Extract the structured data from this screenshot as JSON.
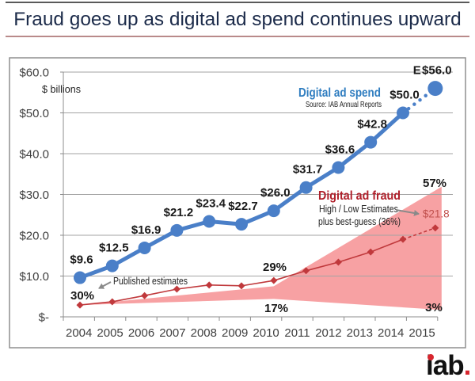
{
  "title": "Fraud goes up as digital ad spend continues upward",
  "logo": {
    "text": "iab",
    "period": "."
  },
  "chart_data": {
    "type": "line",
    "title": "Fraud goes up as digital ad spend continues upward",
    "xlabel": "",
    "ylabel": "$ billions",
    "x": [
      "2004",
      "2005",
      "2006",
      "2007",
      "2008",
      "2009",
      "2010",
      "2011",
      "2012",
      "2013",
      "2014",
      "2015"
    ],
    "ylim": [
      0,
      60
    ],
    "yticks": [
      0,
      10,
      20,
      30,
      40,
      50,
      60
    ],
    "ytick_labels": [
      "$-",
      "$10.0",
      "$20.0",
      "$30.0",
      "$40.0",
      "$50.0",
      "$60.0"
    ],
    "grid": true,
    "legend": "inline labels",
    "series": [
      {
        "name": "Digital ad spend",
        "source": "Source: IAB Annual Reports",
        "values": [
          9.6,
          12.5,
          16.9,
          21.2,
          23.4,
          22.7,
          26.0,
          31.7,
          36.6,
          42.8,
          50.0,
          56.0
        ],
        "labels": [
          "$9.6",
          "$12.5",
          "$16.9",
          "$21.2",
          "$23.4",
          "$22.7",
          "$26.0",
          "$31.7",
          "$36.6",
          "$42.8",
          "$50.0",
          "$56.0"
        ],
        "estimated_from_index": 11,
        "estimate_marker": "E",
        "color": "#4a7fc8"
      },
      {
        "name": "Digital ad fraud",
        "description": [
          "High / Low Estimates",
          "plus best-guess (36%)"
        ],
        "values": [
          2.9,
          3.7,
          5.2,
          6.8,
          7.8,
          7.6,
          8.9,
          11.3,
          13.4,
          15.9,
          19.0,
          21.8
        ],
        "end_label": "$21.8",
        "estimated_from_index": 11,
        "color": "#c0393c"
      }
    ],
    "fraud_range": {
      "x": [
        "2004",
        "2010",
        "2015"
      ],
      "high": [
        2.9,
        7.5,
        31.9
      ],
      "low": [
        2.9,
        4.4,
        1.7
      ],
      "high_pct_labels": [
        "30%",
        "29%",
        "57%"
      ],
      "low_pct_labels": [
        "",
        "17%",
        "3%"
      ],
      "color": "#f7a1a3"
    },
    "annotations": {
      "published_estimates": "Published estimates"
    }
  }
}
